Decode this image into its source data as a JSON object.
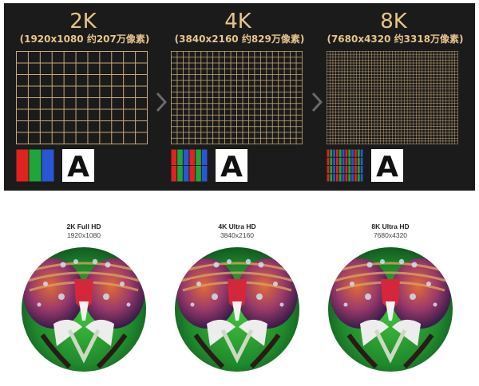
{
  "top_panel": {
    "background": "#1b1b1b",
    "accent_color": "#e7c48a",
    "resolutions": [
      {
        "title": "2K",
        "subtitle": "(1920x1080 约207万像素)",
        "grid_cols": 11,
        "grid_rows": 8,
        "subpixel_groups": 1,
        "letter": "A"
      },
      {
        "title": "4K",
        "subtitle": "(3840x2160 约829万像素)",
        "grid_cols": 22,
        "grid_rows": 16,
        "subpixel_groups": 2,
        "letter": "A"
      },
      {
        "title": "8K",
        "subtitle": "(7680x4320 约3318万像素)",
        "grid_cols": 44,
        "grid_rows": 32,
        "subpixel_groups": 4,
        "letter": "A"
      }
    ]
  },
  "comparison": [
    {
      "label": "2K Full HD",
      "dims": "1920x1080"
    },
    {
      "label": "4K Ultra HD",
      "dims": "3840x2160"
    },
    {
      "label": "8K Ultra HD",
      "dims": "7680x4320"
    }
  ],
  "colors": {
    "grid_line": "#c9a878",
    "subpixel_red": "#e0231d",
    "subpixel_green": "#1fa53a",
    "subpixel_blue": "#2a55d6"
  }
}
